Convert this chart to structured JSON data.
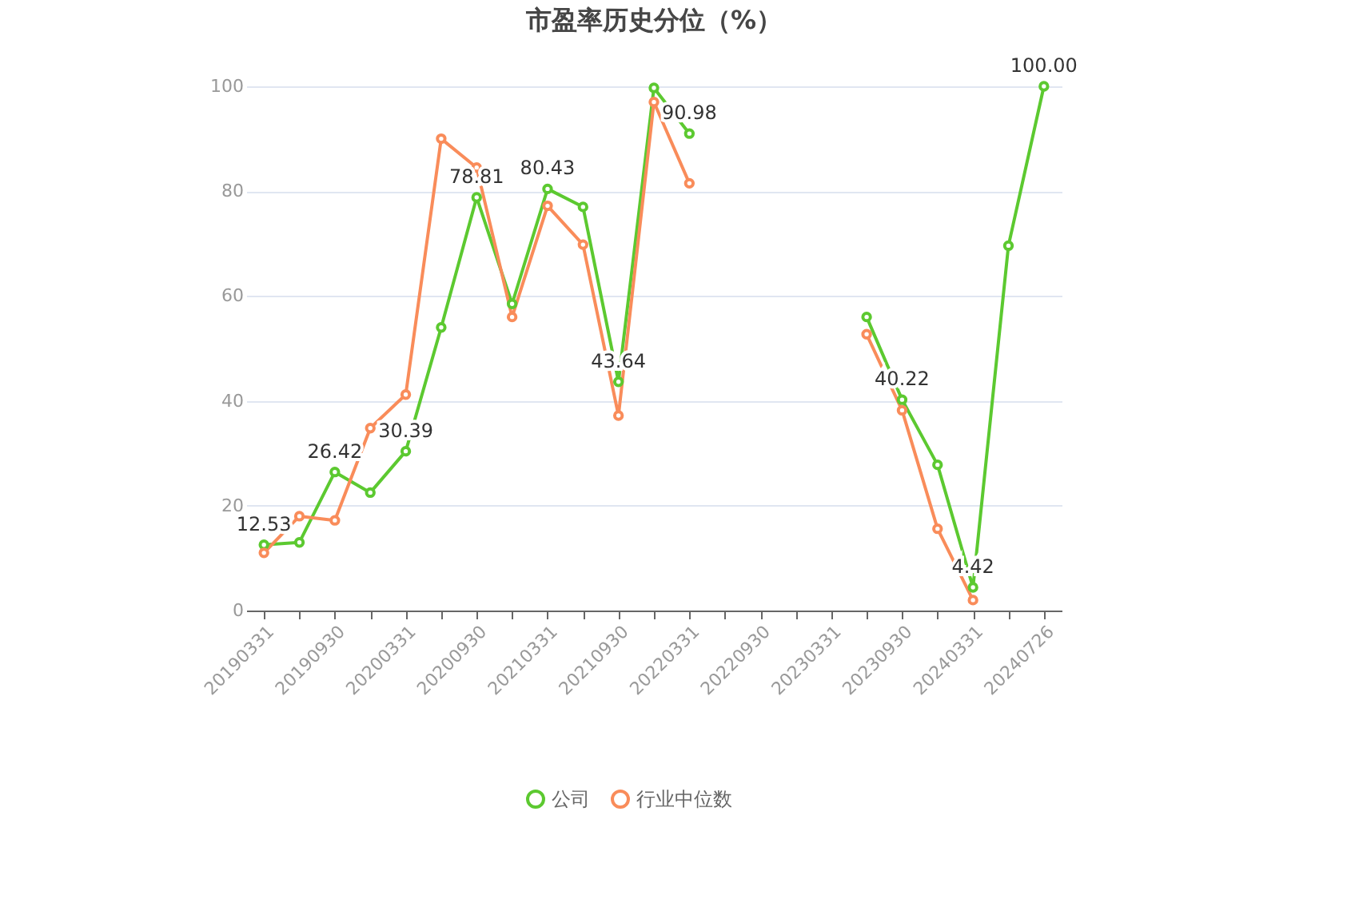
{
  "chart_data": {
    "type": "line",
    "title": "市盈率历史分位（%）",
    "categories": [
      "20190331",
      null,
      "20190930",
      null,
      "20200331",
      null,
      "20200930",
      null,
      "20210331",
      null,
      "20210930",
      null,
      "20220331",
      null,
      "20220930",
      null,
      "20230331",
      null,
      "20230930",
      null,
      "20240331",
      null,
      "20240726"
    ],
    "series": [
      {
        "name": "公司",
        "color": "#5cc930",
        "values": [
          12.53,
          13,
          26.42,
          22.5,
          30.39,
          54,
          78.81,
          58.5,
          80.43,
          77,
          43.64,
          99.7,
          90.98,
          null,
          null,
          null,
          null,
          56,
          40.22,
          27.8,
          4.42,
          69.6,
          100.0
        ],
        "value_labels": [
          "12.53",
          null,
          "26.42",
          null,
          "30.39",
          null,
          "78.81",
          null,
          "80.43",
          null,
          "43.64",
          null,
          "90.98",
          null,
          null,
          null,
          null,
          null,
          "40.22",
          null,
          "4.42",
          null,
          "100.00"
        ]
      },
      {
        "name": "行业中位数",
        "color": "#f98c5a",
        "values": [
          11,
          18,
          17.2,
          34.8,
          41.2,
          90,
          84.5,
          56,
          77.2,
          69.8,
          37.2,
          97,
          81.5,
          null,
          null,
          null,
          null,
          52.7,
          38.2,
          15.6,
          2,
          null,
          null
        ]
      }
    ],
    "ylim": [
      0,
      100
    ],
    "yticks": [
      0,
      20,
      40,
      60,
      80,
      100
    ],
    "grid": "y",
    "legend": "bottom",
    "marker": "circle",
    "line_style": "solid"
  }
}
